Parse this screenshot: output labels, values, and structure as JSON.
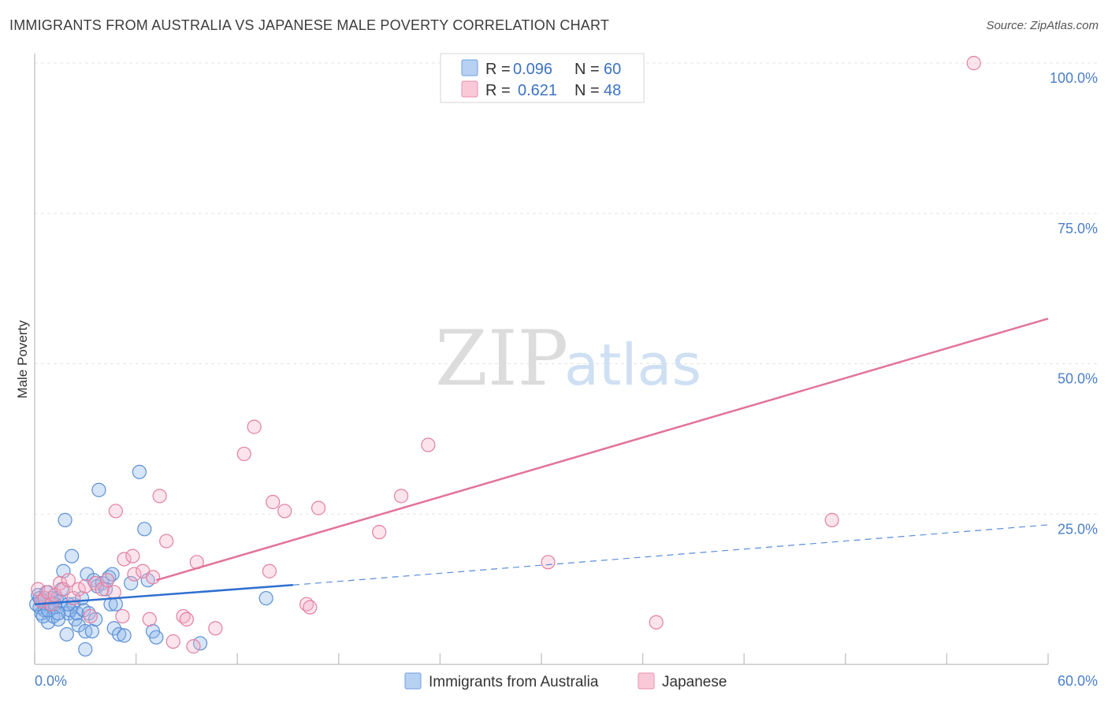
{
  "header": {
    "title": "IMMIGRANTS FROM AUSTRALIA VS JAPANESE MALE POVERTY CORRELATION CHART",
    "source": "Source: ZipAtlas.com"
  },
  "watermark": {
    "zip": "ZIP",
    "atlas": "atlas"
  },
  "chart_data": {
    "type": "scatter",
    "title": "IMMIGRANTS FROM AUSTRALIA VS JAPANESE MALE POVERTY CORRELATION CHART",
    "ylabel": "Male Poverty",
    "xlabel": "",
    "xlim": [
      0,
      60
    ],
    "ylim": [
      0,
      105
    ],
    "x_tick_labels": [
      "0.0%",
      "60.0%"
    ],
    "y_ticks": [
      {
        "value": 100,
        "label": "100.0%"
      },
      {
        "value": 75,
        "label": "75.0%"
      },
      {
        "value": 50,
        "label": "50.0%"
      },
      {
        "value": 25,
        "label": "25.0%"
      }
    ],
    "legend": [
      {
        "r_label": "R =",
        "r_value": "0.096",
        "n_label": "N =",
        "n_value": "60"
      },
      {
        "r_label": "R =",
        "r_value": "0.621",
        "n_label": "N =",
        "n_value": "48"
      }
    ],
    "series": [
      {
        "name": "Immigrants from Australia",
        "color": "#8ab4e8",
        "stroke": "#5b8fd6",
        "trend": {
          "x0": 0,
          "y0": 10.0,
          "x1": 15.3,
          "y1": 13.2,
          "dash_to_x": 60,
          "dash_to_y": 23.2,
          "color": "#2f6fd0"
        },
        "points": [
          [
            0.2,
            11.5
          ],
          [
            0.3,
            9.5
          ],
          [
            0.4,
            8.5
          ],
          [
            0.5,
            10.5
          ],
          [
            0.6,
            9.0
          ],
          [
            0.7,
            12.0
          ],
          [
            0.8,
            7.0
          ],
          [
            0.9,
            10.0
          ],
          [
            1.0,
            11.0
          ],
          [
            1.1,
            8.0
          ],
          [
            1.2,
            9.5
          ],
          [
            1.3,
            11.0
          ],
          [
            1.4,
            7.5
          ],
          [
            1.5,
            10.5
          ],
          [
            1.6,
            12.5
          ],
          [
            1.7,
            15.5
          ],
          [
            1.8,
            24.0
          ],
          [
            1.9,
            5.0
          ],
          [
            2.0,
            8.5
          ],
          [
            2.1,
            9.0
          ],
          [
            2.2,
            18.0
          ],
          [
            2.3,
            10.0
          ],
          [
            2.4,
            7.5
          ],
          [
            2.5,
            8.5
          ],
          [
            2.6,
            6.5
          ],
          [
            2.8,
            11.0
          ],
          [
            2.9,
            9.0
          ],
          [
            3.0,
            5.5
          ],
          [
            3.1,
            15.0
          ],
          [
            3.2,
            8.5
          ],
          [
            3.0,
            2.5
          ],
          [
            3.4,
            5.5
          ],
          [
            3.5,
            14.0
          ],
          [
            3.6,
            7.5
          ],
          [
            3.7,
            13.0
          ],
          [
            3.8,
            29.0
          ],
          [
            4.0,
            13.5
          ],
          [
            4.2,
            12.5
          ],
          [
            4.4,
            14.5
          ],
          [
            4.5,
            10.0
          ],
          [
            4.6,
            15.0
          ],
          [
            4.7,
            6.0
          ],
          [
            4.8,
            10.0
          ],
          [
            5.0,
            5.0
          ],
          [
            5.3,
            4.8
          ],
          [
            5.7,
            13.5
          ],
          [
            6.2,
            32.0
          ],
          [
            6.5,
            22.5
          ],
          [
            6.7,
            14.0
          ],
          [
            7.0,
            5.5
          ],
          [
            7.2,
            4.5
          ],
          [
            9.8,
            3.5
          ],
          [
            13.7,
            11.0
          ],
          [
            0.1,
            10.0
          ],
          [
            0.3,
            11.0
          ],
          [
            0.5,
            8.0
          ],
          [
            0.8,
            9.0
          ],
          [
            1.2,
            10.0
          ],
          [
            1.4,
            8.5
          ],
          [
            2.0,
            10.0
          ]
        ]
      },
      {
        "name": "Japanese",
        "color": "#f5b3c8",
        "stroke": "#e27fa1",
        "trend": {
          "x0": 7.2,
          "y0": 14.0,
          "x1": 60,
          "y1": 57.5,
          "color": "#e2739b"
        },
        "points": [
          [
            0.2,
            12.5
          ],
          [
            0.4,
            10.5
          ],
          [
            0.6,
            11.0
          ],
          [
            0.8,
            12.0
          ],
          [
            1.0,
            10.0
          ],
          [
            1.2,
            11.5
          ],
          [
            1.5,
            13.5
          ],
          [
            1.7,
            12.5
          ],
          [
            2.0,
            14.0
          ],
          [
            2.3,
            11.0
          ],
          [
            2.6,
            12.5
          ],
          [
            3.0,
            13.0
          ],
          [
            3.3,
            8.0
          ],
          [
            3.6,
            13.5
          ],
          [
            4.0,
            12.5
          ],
          [
            4.3,
            14.0
          ],
          [
            4.7,
            12.0
          ],
          [
            4.8,
            25.5
          ],
          [
            5.2,
            8.0
          ],
          [
            5.3,
            17.5
          ],
          [
            5.8,
            18.0
          ],
          [
            5.9,
            15.0
          ],
          [
            6.4,
            15.5
          ],
          [
            6.8,
            7.5
          ],
          [
            7.0,
            14.5
          ],
          [
            7.4,
            28.0
          ],
          [
            7.8,
            20.5
          ],
          [
            8.2,
            3.8
          ],
          [
            8.8,
            8.0
          ],
          [
            9.0,
            7.5
          ],
          [
            9.4,
            3.0
          ],
          [
            9.6,
            17.0
          ],
          [
            10.7,
            6.0
          ],
          [
            12.4,
            35.0
          ],
          [
            13.0,
            39.5
          ],
          [
            13.9,
            15.5
          ],
          [
            14.1,
            27.0
          ],
          [
            14.8,
            25.5
          ],
          [
            16.1,
            10.0
          ],
          [
            16.3,
            9.5
          ],
          [
            16.8,
            26.0
          ],
          [
            20.4,
            22.0
          ],
          [
            21.7,
            28.0
          ],
          [
            23.3,
            36.5
          ],
          [
            30.4,
            17.0
          ],
          [
            36.8,
            7.0
          ],
          [
            47.2,
            24.0
          ],
          [
            55.6,
            100.0
          ]
        ]
      }
    ]
  }
}
